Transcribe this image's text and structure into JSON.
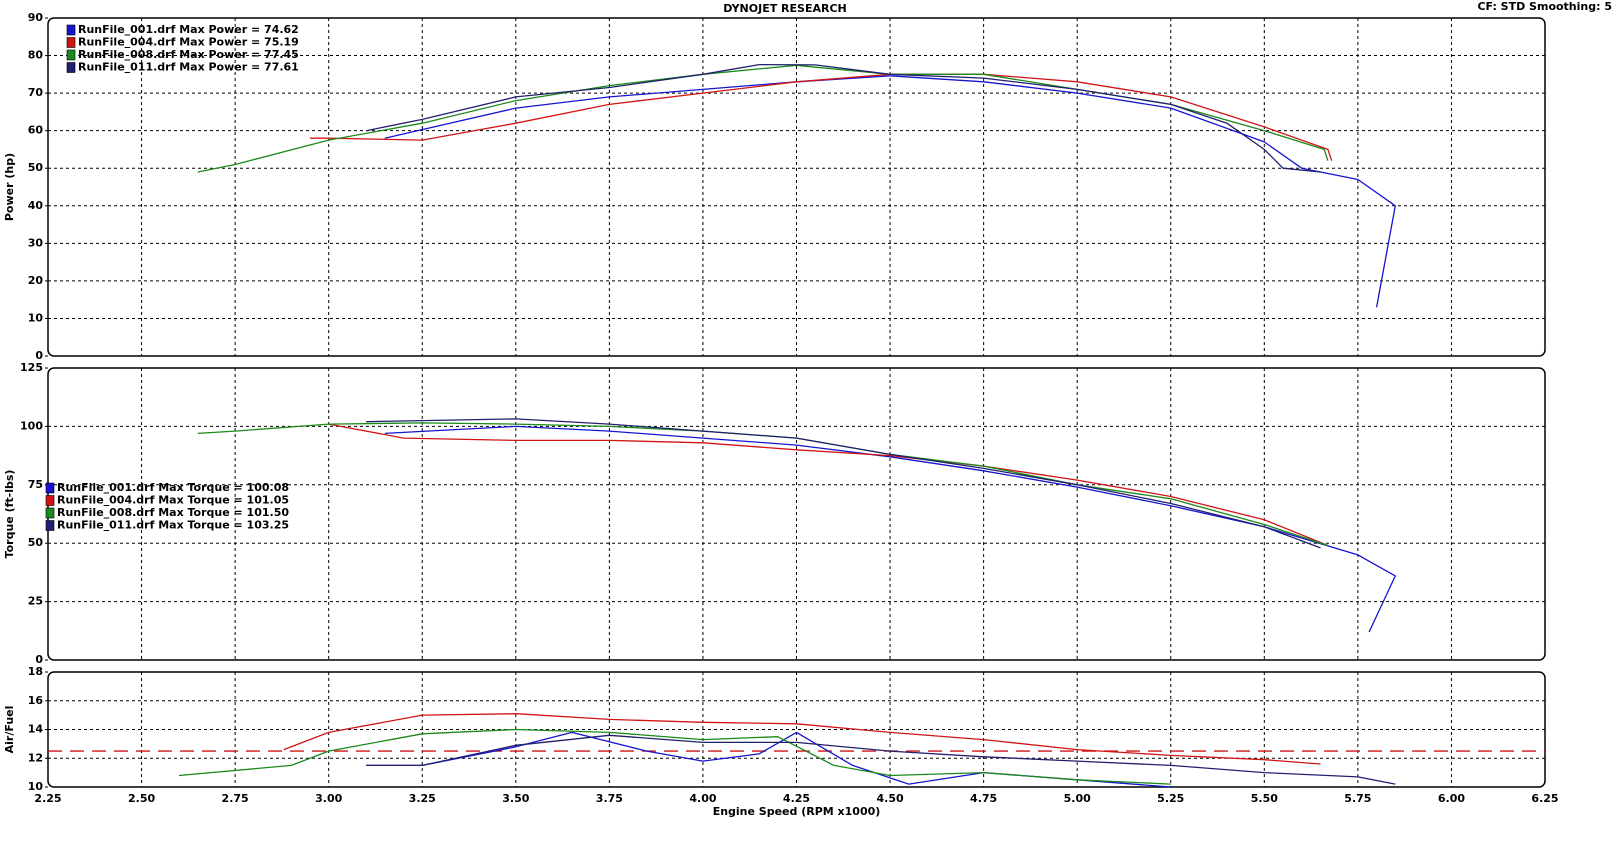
{
  "chart_data": [
    {
      "type": "line",
      "title": "DYNOJET RESEARCH",
      "annotation": "CF: STD  Smoothing: 5",
      "ylabel": "Power (hp)",
      "ylim": [
        0,
        90
      ],
      "yticks": [
        0,
        10,
        20,
        30,
        40,
        50,
        60,
        70,
        80,
        90
      ],
      "grid": true,
      "legend": "top-left",
      "series": [
        {
          "name": "RunFile_001.drf Max Power = 74.62",
          "color": "#1515d0",
          "x": [
            3.15,
            3.5,
            3.75,
            4.0,
            4.25,
            4.5,
            4.75,
            5.0,
            5.25,
            5.5,
            5.6,
            5.75,
            5.85,
            5.8
          ],
          "values": [
            58,
            66,
            69,
            71,
            73,
            74.6,
            73,
            70,
            66,
            57,
            50,
            47,
            40,
            13
          ]
        },
        {
          "name": "RunFile_004.drf Max Power = 75.19",
          "color": "#d01515",
          "x": [
            2.95,
            3.0,
            3.25,
            3.5,
            3.75,
            4.0,
            4.25,
            4.5,
            4.75,
            5.0,
            5.25,
            5.5,
            5.67,
            5.68
          ],
          "values": [
            58,
            58,
            57.5,
            62,
            67,
            70,
            73,
            75,
            75,
            73,
            69,
            61,
            55,
            52
          ]
        },
        {
          "name": "RunFile_008.drf Max Power = 77.45",
          "color": "#1a8a1a",
          "x": [
            2.65,
            2.75,
            3.0,
            3.25,
            3.5,
            3.75,
            4.0,
            4.25,
            4.5,
            4.75,
            5.0,
            5.25,
            5.5,
            5.66,
            5.67
          ],
          "values": [
            49,
            51,
            57.5,
            62,
            68,
            72,
            75,
            77.4,
            75,
            75,
            71,
            67,
            60,
            55,
            52
          ]
        },
        {
          "name": "RunFile_011.drf Max Power = 77.61",
          "color": "#20206e",
          "x": [
            3.1,
            3.25,
            3.5,
            3.75,
            4.0,
            4.15,
            4.3,
            4.5,
            4.75,
            5.0,
            5.25,
            5.4,
            5.5,
            5.55,
            5.65
          ],
          "values": [
            60,
            63,
            69,
            71.5,
            75,
            77.6,
            77.5,
            75,
            74,
            71,
            67,
            62,
            55,
            50,
            49
          ]
        }
      ]
    },
    {
      "type": "line",
      "ylabel": "Torque (ft-lbs)",
      "ylim": [
        0,
        125
      ],
      "yticks": [
        0,
        25,
        50,
        75,
        100,
        125
      ],
      "grid": true,
      "legend": "left",
      "series": [
        {
          "name": "RunFile_001.drf Max Torque = 100.08",
          "color": "#1515d0",
          "x": [
            3.15,
            3.5,
            3.75,
            4.0,
            4.25,
            4.5,
            4.75,
            5.0,
            5.25,
            5.5,
            5.75,
            5.85,
            5.78
          ],
          "values": [
            97,
            100,
            98,
            95,
            92,
            87,
            81,
            74,
            66,
            57,
            45,
            36,
            12
          ]
        },
        {
          "name": "RunFile_004.drf Max Torque = 101.05",
          "color": "#d01515",
          "x": [
            3.0,
            3.2,
            3.5,
            3.75,
            4.0,
            4.25,
            4.5,
            4.75,
            5.0,
            5.25,
            5.5,
            5.67
          ],
          "values": [
            101,
            95,
            94,
            94,
            93,
            90,
            87.5,
            83,
            77,
            70,
            60,
            49
          ]
        },
        {
          "name": "RunFile_008.drf Max Torque = 101.50",
          "color": "#1a8a1a",
          "x": [
            2.65,
            2.75,
            3.0,
            3.25,
            3.5,
            3.75,
            4.0,
            4.25,
            4.5,
            4.75,
            5.0,
            5.25,
            5.5,
            5.67
          ],
          "values": [
            97,
            98,
            101,
            101.5,
            101,
            100,
            98,
            95,
            88,
            83,
            75,
            69,
            58,
            49
          ]
        },
        {
          "name": "RunFile_011.drf Max Torque = 103.25",
          "color": "#20206e",
          "x": [
            3.1,
            3.25,
            3.5,
            3.75,
            4.0,
            4.25,
            4.5,
            4.75,
            5.0,
            5.25,
            5.5,
            5.65
          ],
          "values": [
            102,
            102.5,
            103.2,
            101,
            98,
            95,
            88,
            82,
            75,
            67,
            57,
            48
          ]
        }
      ]
    },
    {
      "type": "line",
      "ylabel": "Air/Fuel",
      "xlabel": "Engine Speed (RPM x1000)",
      "ylim": [
        10,
        18
      ],
      "yticks": [
        10,
        12,
        14,
        16,
        18
      ],
      "grid": true,
      "xlim": [
        2.25,
        6.25
      ],
      "xticks": [
        2.25,
        {
          "value": 2.5,
          "label": "2.50"
        },
        2.75,
        {
          "value": 3,
          "label": "3.00"
        },
        3.25,
        {
          "value": 3.5,
          "label": "3.50"
        },
        3.75,
        {
          "value": 4,
          "label": "4.00"
        },
        4.25,
        {
          "value": 4.5,
          "label": "4.50"
        },
        4.75,
        {
          "value": 5,
          "label": "5.00"
        },
        5.25,
        {
          "value": 5.5,
          "label": "5.50"
        },
        5.75,
        {
          "value": 6,
          "label": "6.00"
        },
        6.25
      ],
      "reference_line": 12.5,
      "reference_color": "#d01515",
      "series": [
        {
          "color": "#1515d0",
          "x": [
            3.1,
            3.25,
            3.5,
            3.65,
            3.85,
            4.0,
            4.15,
            4.25,
            4.4,
            4.55,
            4.75,
            5.0,
            5.25
          ],
          "values": [
            11.5,
            11.5,
            12.8,
            13.8,
            12.5,
            11.8,
            12.3,
            13.8,
            11.5,
            10.2,
            11.0,
            10.5,
            10.0
          ]
        },
        {
          "color": "#d01515",
          "x": [
            2.88,
            3.0,
            3.25,
            3.5,
            3.75,
            4.0,
            4.25,
            4.5,
            4.75,
            5.0,
            5.25,
            5.5,
            5.65
          ],
          "values": [
            12.6,
            13.8,
            15.0,
            15.1,
            14.7,
            14.5,
            14.4,
            13.8,
            13.3,
            12.6,
            12.2,
            11.9,
            11.6
          ]
        },
        {
          "color": "#1a8a1a",
          "x": [
            2.6,
            2.9,
            3.0,
            3.25,
            3.5,
            3.75,
            4.0,
            4.2,
            4.35,
            4.5,
            4.75,
            5.0,
            5.25
          ],
          "values": [
            10.8,
            11.5,
            12.5,
            13.7,
            14.0,
            13.8,
            13.3,
            13.5,
            11.5,
            10.8,
            11.0,
            10.5,
            10.2
          ]
        },
        {
          "color": "#20206e",
          "x": [
            3.1,
            3.25,
            3.5,
            3.75,
            4.0,
            4.25,
            4.5,
            4.75,
            5.0,
            5.25,
            5.5,
            5.75,
            5.85
          ],
          "values": [
            11.5,
            11.5,
            12.9,
            13.6,
            13.1,
            13.1,
            12.5,
            12.1,
            11.8,
            11.5,
            11.0,
            10.7,
            10.2
          ]
        }
      ]
    }
  ]
}
